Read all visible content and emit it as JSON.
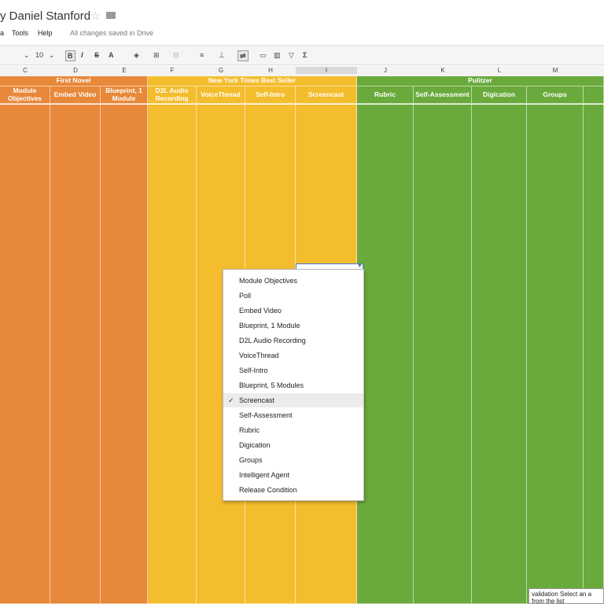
{
  "title": "y Daniel Stanford",
  "menu": [
    "a",
    "Tools",
    "Help"
  ],
  "saved_status": "All changes saved in Drive",
  "toolbar": {
    "font_size": "10",
    "bold": "B",
    "italic": "I",
    "strike": "S",
    "text_color": "A",
    "sigma": "Σ"
  },
  "column_letters": [
    "C",
    "D",
    "E",
    "F",
    "G",
    "H",
    "I",
    "J",
    "K",
    "L",
    "M"
  ],
  "groups": [
    "First Novel",
    "New York Times Best Seller",
    "Pulitzer"
  ],
  "dropdown_options": [
    "Module Objectives",
    "Poll",
    "Embed Video",
    "Blueprint, 1 Module",
    "D2L Audio Recording",
    "VoiceThread",
    "Self-Intro",
    "Blueprint, 5 Modules",
    "Screencast",
    "Self-Assessment",
    "Rubric",
    "Digication",
    "Groups",
    "Intelligent Agent",
    "Release Condition"
  ],
  "dropdown_selected": "Screencast",
  "tooltip": "validation Select an a from the list",
  "colors": {
    "orange": "#e8883a",
    "yellow": "#f4bd2e",
    "green": "#6aaa3c"
  }
}
